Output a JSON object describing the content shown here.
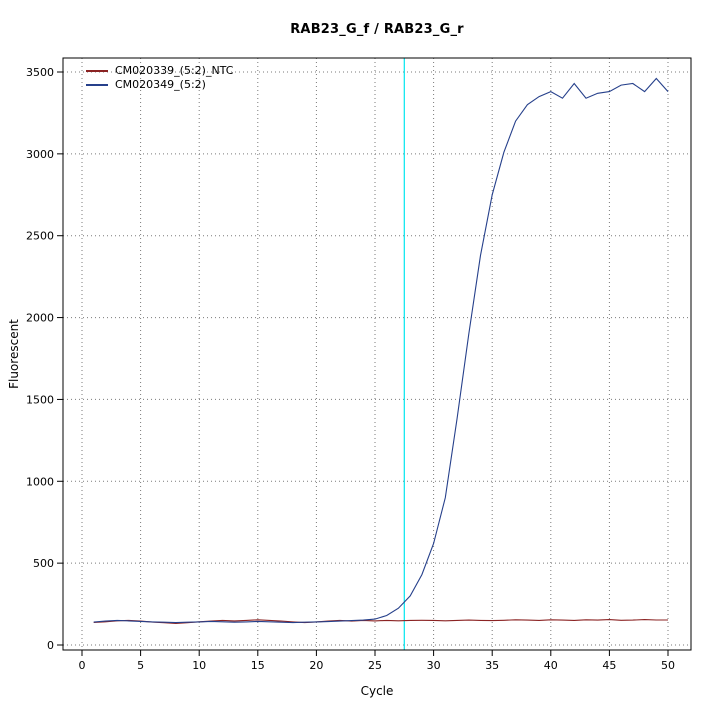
{
  "chart_data": {
    "type": "line",
    "title": "RAB23_G_f / RAB23_G_r",
    "xlabel": "Cycle",
    "ylabel": "Fluorescent",
    "xlim": [
      0,
      50
    ],
    "ylim": [
      0,
      3500
    ],
    "xticks": [
      0,
      5,
      10,
      15,
      20,
      25,
      30,
      35,
      40,
      45,
      50
    ],
    "yticks": [
      0,
      500,
      1000,
      1500,
      2000,
      2500,
      3000,
      3500
    ],
    "grid": true,
    "grid_style": "dotted",
    "legend_position": "top-left",
    "threshold_line": {
      "x": 27.5,
      "color": "#00E5EE"
    },
    "legend": [
      {
        "label": "CM020339_(5:2)_NTC",
        "color": "#8B2323"
      },
      {
        "label": "CM020349_(5:2)",
        "color": "#26408B"
      }
    ],
    "x": [
      1,
      2,
      3,
      4,
      5,
      6,
      7,
      8,
      9,
      10,
      11,
      12,
      13,
      14,
      15,
      16,
      17,
      18,
      19,
      20,
      21,
      22,
      23,
      24,
      25,
      26,
      27,
      28,
      29,
      30,
      31,
      32,
      33,
      34,
      35,
      36,
      37,
      38,
      39,
      40,
      41,
      42,
      43,
      44,
      45,
      46,
      47,
      48,
      49,
      50
    ],
    "series": [
      {
        "name": "CM020339_(5:2)_NTC",
        "color": "#8B2323",
        "values": [
          138,
          142,
          148,
          150,
          146,
          140,
          136,
          132,
          136,
          142,
          146,
          150,
          147,
          150,
          154,
          150,
          146,
          141,
          137,
          141,
          146,
          150,
          146,
          150,
          147,
          150,
          148,
          150,
          151,
          150,
          148,
          150,
          152,
          150,
          149,
          151,
          154,
          152,
          150,
          154,
          152,
          150,
          154,
          152,
          155,
          151,
          152,
          155,
          153,
          153
        ]
      },
      {
        "name": "CM020349_(5:2)",
        "color": "#26408B",
        "values": [
          140,
          146,
          150,
          147,
          144,
          141,
          139,
          137,
          139,
          141,
          144,
          142,
          139,
          141,
          144,
          142,
          139,
          137,
          139,
          141,
          143,
          146,
          149,
          152,
          158,
          180,
          225,
          300,
          430,
          620,
          900,
          1380,
          1900,
          2380,
          2750,
          3010,
          3200,
          3300,
          3350,
          3380,
          3340,
          3430,
          3340,
          3370,
          3380,
          3420,
          3430,
          3380,
          3460,
          3380
        ]
      }
    ]
  }
}
